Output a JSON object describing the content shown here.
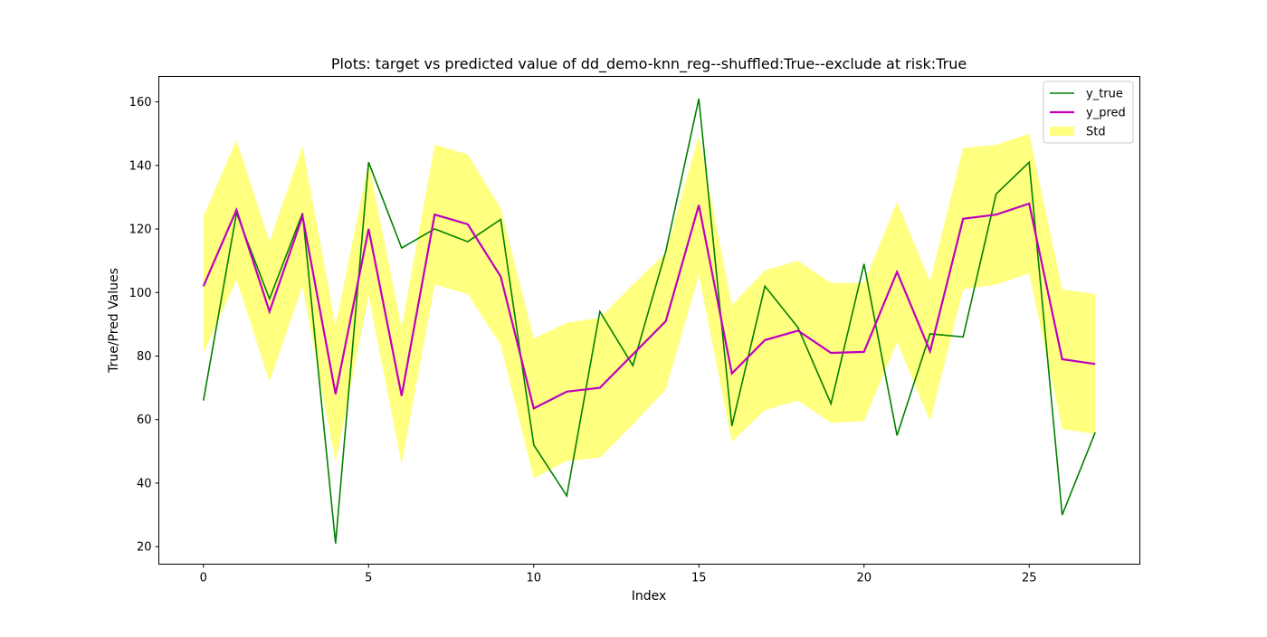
{
  "chart_data": {
    "type": "line",
    "title": "Plots: target vs predicted value of dd_demo-knn_reg--shuffled:True--exclude at risk:True",
    "xlabel": "Index",
    "ylabel": "True/Pred Values",
    "xlim": [
      -1.35,
      28.35
    ],
    "ylim": [
      14.5,
      168
    ],
    "xticks": [
      0,
      5,
      10,
      15,
      20,
      25
    ],
    "yticks": [
      20,
      40,
      60,
      80,
      100,
      120,
      140,
      160
    ],
    "grid": false,
    "legend_position": "top-right",
    "x": [
      0,
      1,
      2,
      3,
      4,
      5,
      6,
      7,
      8,
      9,
      10,
      11,
      12,
      13,
      14,
      15,
      16,
      17,
      18,
      19,
      20,
      21,
      22,
      23,
      24,
      25,
      26,
      27
    ],
    "series": [
      {
        "name": "y_true",
        "kind": "line",
        "color": "#008000",
        "values": [
          66,
          125,
          98,
          125,
          21,
          141,
          114,
          120,
          116,
          123,
          52,
          36,
          94,
          77,
          113,
          161,
          58,
          102,
          89,
          65,
          109,
          55,
          87,
          86,
          131,
          141,
          30,
          56
        ]
      },
      {
        "name": "y_pred",
        "kind": "line",
        "color": "#bf00bf",
        "values": [
          102,
          126,
          94,
          124,
          68,
          120,
          67.5,
          124.5,
          121.5,
          105,
          63.5,
          68.8,
          70,
          80.5,
          91,
          127.5,
          74.5,
          85,
          88,
          81,
          81.3,
          106.5,
          81.5,
          123.2,
          124.5,
          128,
          79,
          77.5
        ]
      },
      {
        "name": "Std",
        "kind": "band",
        "color": "#ffff80",
        "lower": [
          81,
          104,
          72,
          102,
          46.5,
          99,
          46,
          102.5,
          99.5,
          83.5,
          41.5,
          47,
          48,
          58.5,
          69.5,
          105.5,
          53,
          63,
          66,
          59,
          59.5,
          84.5,
          59.5,
          101,
          102.5,
          106,
          57,
          55.5
        ],
        "upper": [
          124,
          148,
          116,
          146,
          89.5,
          141,
          89,
          146.5,
          143.5,
          126.5,
          85.5,
          90.5,
          92,
          102.5,
          112.5,
          149.5,
          96,
          107,
          110,
          103,
          103,
          128.5,
          103.5,
          145.5,
          146.5,
          150,
          101,
          99.5
        ]
      }
    ]
  }
}
